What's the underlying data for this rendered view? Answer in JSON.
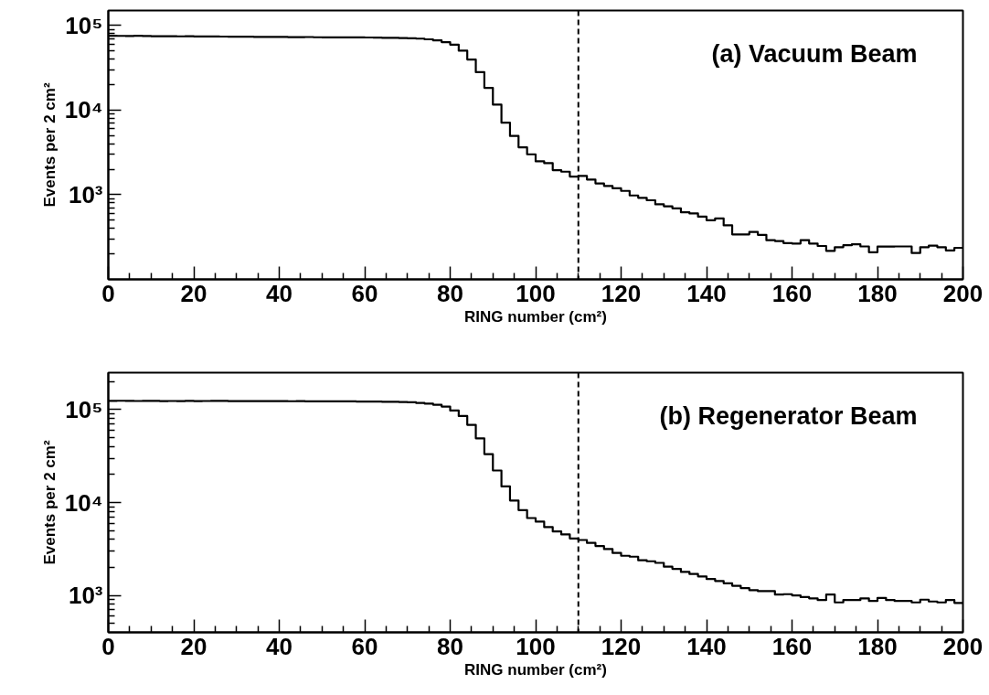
{
  "chart_data": [
    {
      "type": "histogram",
      "xlabel": "RING number (cm²)",
      "ylabel": "Events per 2 cm²",
      "log": "y",
      "grid": false,
      "color": "#000000",
      "annotations": [
        "(a) Vacuum Beam"
      ],
      "ref_lines": [
        {
          "axis": "x",
          "value": 110,
          "line_style": "dashed",
          "color": "#000000"
        }
      ],
      "xlim": [
        0,
        200
      ],
      "ylim": [
        100,
        150000
      ],
      "xticks": [
        0,
        {
          "value": 5,
          "label": null
        },
        {
          "value": 10,
          "label": null
        },
        {
          "value": 15,
          "label": null
        },
        20,
        {
          "value": 25,
          "label": null
        },
        {
          "value": 30,
          "label": null
        },
        {
          "value": 35,
          "label": null
        },
        40,
        {
          "value": 45,
          "label": null
        },
        {
          "value": 50,
          "label": null
        },
        {
          "value": 55,
          "label": null
        },
        60,
        {
          "value": 65,
          "label": null
        },
        {
          "value": 70,
          "label": null
        },
        {
          "value": 75,
          "label": null
        },
        80,
        {
          "value": 85,
          "label": null
        },
        {
          "value": 90,
          "label": null
        },
        {
          "value": 95,
          "label": null
        },
        100,
        {
          "value": 105,
          "label": null
        },
        {
          "value": 110,
          "label": null
        },
        {
          "value": 115,
          "label": null
        },
        120,
        {
          "value": 125,
          "label": null
        },
        {
          "value": 130,
          "label": null
        },
        {
          "value": 135,
          "label": null
        },
        140,
        {
          "value": 145,
          "label": null
        },
        {
          "value": 150,
          "label": null
        },
        {
          "value": 155,
          "label": null
        },
        160,
        {
          "value": 165,
          "label": null
        },
        {
          "value": 170,
          "label": null
        },
        {
          "value": 175,
          "label": null
        },
        180,
        {
          "value": 185,
          "label": null
        },
        {
          "value": 190,
          "label": null
        },
        {
          "value": 195,
          "label": null
        },
        200
      ],
      "yticks": [
        {
          "value": 200,
          "label": null
        },
        {
          "value": 300,
          "label": null
        },
        {
          "value": 400,
          "label": null
        },
        {
          "value": 500,
          "label": null
        },
        {
          "value": 600,
          "label": null
        },
        {
          "value": 700,
          "label": null
        },
        {
          "value": 800,
          "label": null
        },
        {
          "value": 900,
          "label": null
        },
        {
          "value": 1000,
          "label": "10³"
        },
        {
          "value": 2000,
          "label": null
        },
        {
          "value": 3000,
          "label": null
        },
        {
          "value": 4000,
          "label": null
        },
        {
          "value": 5000,
          "label": null
        },
        {
          "value": 6000,
          "label": null
        },
        {
          "value": 7000,
          "label": null
        },
        {
          "value": 8000,
          "label": null
        },
        {
          "value": 9000,
          "label": null
        },
        {
          "value": 10000,
          "label": "10⁴"
        },
        {
          "value": 20000,
          "label": null
        },
        {
          "value": 30000,
          "label": null
        },
        {
          "value": 40000,
          "label": null
        },
        {
          "value": 50000,
          "label": null
        },
        {
          "value": 60000,
          "label": null
        },
        {
          "value": 70000,
          "label": null
        },
        {
          "value": 80000,
          "label": null
        },
        {
          "value": 90000,
          "label": null
        },
        {
          "value": 100000,
          "label": "10⁵"
        }
      ],
      "bins": [
        0,
        2,
        4,
        6,
        8,
        10,
        12,
        14,
        16,
        18,
        20,
        22,
        24,
        26,
        28,
        30,
        32,
        34,
        36,
        38,
        40,
        42,
        44,
        46,
        48,
        50,
        52,
        54,
        56,
        58,
        60,
        62,
        64,
        66,
        68,
        70,
        72,
        74,
        76,
        78,
        80,
        82,
        84,
        86,
        88,
        90,
        92,
        94,
        96,
        98,
        100,
        102,
        104,
        106,
        108,
        110,
        112,
        114,
        116,
        118,
        120,
        122,
        124,
        126,
        128,
        130,
        132,
        134,
        136,
        138,
        140,
        142,
        144,
        146,
        148,
        150,
        152,
        154,
        156,
        158,
        160,
        162,
        164,
        166,
        168,
        170,
        172,
        174,
        176,
        178,
        180,
        182,
        184,
        186,
        188,
        190,
        192,
        194,
        196,
        198,
        200
      ],
      "values": [
        75500,
        75200,
        75000,
        75300,
        74800,
        74600,
        74700,
        74500,
        74300,
        74400,
        74200,
        74000,
        74100,
        73800,
        73700,
        73500,
        73600,
        73300,
        73200,
        73000,
        73100,
        72800,
        72700,
        72900,
        72500,
        72400,
        72300,
        72400,
        72200,
        72100,
        72000,
        71800,
        71500,
        71200,
        70900,
        70500,
        69800,
        68500,
        66500,
        63500,
        59300,
        50300,
        39600,
        28000,
        18300,
        11600,
        7100,
        4940,
        3630,
        3000,
        2480,
        2360,
        1950,
        1870,
        1640,
        1670,
        1510,
        1360,
        1270,
        1190,
        1110,
        980,
        920,
        860,
        770,
        730,
        690,
        620,
        600,
        550,
        500,
        525,
        435,
        340,
        340,
        363,
        336,
        290,
        284,
        268,
        265,
        290,
        265,
        248,
        217,
        240,
        253,
        260,
        245,
        209,
        244,
        244,
        245,
        245,
        205,
        240,
        250,
        240,
        220,
        236
      ]
    },
    {
      "type": "histogram",
      "xlabel": "RING number (cm²)",
      "ylabel": "Events per 2 cm²",
      "log": "y",
      "grid": false,
      "color": "#000000",
      "annotations": [
        "(b) Regenerator Beam"
      ],
      "ref_lines": [
        {
          "axis": "x",
          "value": 110,
          "line_style": "dashed",
          "color": "#000000"
        }
      ],
      "xlim": [
        0,
        200
      ],
      "ylim": [
        400,
        250000
      ],
      "xticks": [
        0,
        {
          "value": 5,
          "label": null
        },
        {
          "value": 10,
          "label": null
        },
        {
          "value": 15,
          "label": null
        },
        20,
        {
          "value": 25,
          "label": null
        },
        {
          "value": 30,
          "label": null
        },
        {
          "value": 35,
          "label": null
        },
        40,
        {
          "value": 45,
          "label": null
        },
        {
          "value": 50,
          "label": null
        },
        {
          "value": 55,
          "label": null
        },
        60,
        {
          "value": 65,
          "label": null
        },
        {
          "value": 70,
          "label": null
        },
        {
          "value": 75,
          "label": null
        },
        80,
        {
          "value": 85,
          "label": null
        },
        {
          "value": 90,
          "label": null
        },
        {
          "value": 95,
          "label": null
        },
        100,
        {
          "value": 105,
          "label": null
        },
        {
          "value": 110,
          "label": null
        },
        {
          "value": 115,
          "label": null
        },
        120,
        {
          "value": 125,
          "label": null
        },
        {
          "value": 130,
          "label": null
        },
        {
          "value": 135,
          "label": null
        },
        140,
        {
          "value": 145,
          "label": null
        },
        {
          "value": 150,
          "label": null
        },
        {
          "value": 155,
          "label": null
        },
        160,
        {
          "value": 165,
          "label": null
        },
        {
          "value": 170,
          "label": null
        },
        {
          "value": 175,
          "label": null
        },
        180,
        {
          "value": 185,
          "label": null
        },
        {
          "value": 190,
          "label": null
        },
        {
          "value": 195,
          "label": null
        },
        200
      ],
      "yticks": [
        {
          "value": 500,
          "label": null
        },
        {
          "value": 600,
          "label": null
        },
        {
          "value": 700,
          "label": null
        },
        {
          "value": 800,
          "label": null
        },
        {
          "value": 900,
          "label": null
        },
        {
          "value": 1000,
          "label": "10³"
        },
        {
          "value": 2000,
          "label": null
        },
        {
          "value": 3000,
          "label": null
        },
        {
          "value": 4000,
          "label": null
        },
        {
          "value": 5000,
          "label": null
        },
        {
          "value": 6000,
          "label": null
        },
        {
          "value": 7000,
          "label": null
        },
        {
          "value": 8000,
          "label": null
        },
        {
          "value": 9000,
          "label": null
        },
        {
          "value": 10000,
          "label": "10⁴"
        },
        {
          "value": 20000,
          "label": null
        },
        {
          "value": 30000,
          "label": null
        },
        {
          "value": 40000,
          "label": null
        },
        {
          "value": 50000,
          "label": null
        },
        {
          "value": 60000,
          "label": null
        },
        {
          "value": 70000,
          "label": null
        },
        {
          "value": 80000,
          "label": null
        },
        {
          "value": 90000,
          "label": null
        },
        {
          "value": 100000,
          "label": "10⁵"
        },
        {
          "value": 200000,
          "label": null
        }
      ],
      "bins": [
        0,
        2,
        4,
        6,
        8,
        10,
        12,
        14,
        16,
        18,
        20,
        22,
        24,
        26,
        28,
        30,
        32,
        34,
        36,
        38,
        40,
        42,
        44,
        46,
        48,
        50,
        52,
        54,
        56,
        58,
        60,
        62,
        64,
        66,
        68,
        70,
        72,
        74,
        76,
        78,
        80,
        82,
        84,
        86,
        88,
        90,
        92,
        94,
        96,
        98,
        100,
        102,
        104,
        106,
        108,
        110,
        112,
        114,
        116,
        118,
        120,
        122,
        124,
        126,
        128,
        130,
        132,
        134,
        136,
        138,
        140,
        142,
        144,
        146,
        148,
        150,
        152,
        154,
        156,
        158,
        160,
        162,
        164,
        166,
        168,
        170,
        172,
        174,
        176,
        178,
        180,
        182,
        184,
        186,
        188,
        190,
        192,
        194,
        196,
        198,
        200
      ],
      "values": [
        124000,
        124500,
        124000,
        123800,
        123900,
        124100,
        123700,
        123800,
        123600,
        123900,
        123500,
        123800,
        124200,
        124000,
        123600,
        123400,
        123700,
        123500,
        123300,
        123400,
        123200,
        123100,
        123300,
        123000,
        122800,
        122900,
        122700,
        122500,
        122600,
        122300,
        122000,
        121800,
        121500,
        121200,
        120800,
        120000,
        118000,
        116000,
        113000,
        108000,
        97700,
        85300,
        68500,
        49100,
        33200,
        22100,
        14900,
        10500,
        8280,
        6800,
        6220,
        5430,
        4880,
        4530,
        4100,
        3950,
        3670,
        3400,
        3150,
        2860,
        2670,
        2610,
        2390,
        2330,
        2240,
        2040,
        1930,
        1790,
        1700,
        1600,
        1500,
        1430,
        1350,
        1270,
        1200,
        1140,
        1110,
        1110,
        1020,
        1030,
        1000,
        960,
        930,
        890,
        1020,
        840,
        890,
        890,
        930,
        870,
        940,
        890,
        870,
        870,
        840,
        900,
        860,
        840,
        890,
        830
      ]
    }
  ]
}
